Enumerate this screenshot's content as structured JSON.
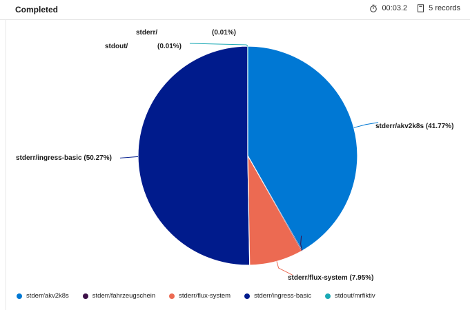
{
  "status": {
    "label": "Completed"
  },
  "meta": {
    "elapsed": "00:03.2",
    "records": "5 records",
    "elapsed_icon": "stopwatch-icon",
    "records_icon": "document-icon"
  },
  "chart_data": {
    "type": "pie",
    "title": "",
    "legend_position": "bottom-left",
    "slices": [
      {
        "name": "stderr/akv2k8s",
        "value": 41.77,
        "label": "stderr/akv2k8s (41.77%)",
        "color": "#0078d4"
      },
      {
        "name": "stderr/fahrzeugschein",
        "value": 0.01,
        "label_name": "stderr/",
        "label_pct": "(0.01%)",
        "color": "#3d1048"
      },
      {
        "name": "stderr/flux-system",
        "value": 7.95,
        "label": "stderr/flux-system (7.95%)",
        "color": "#ec6a52"
      },
      {
        "name": "stderr/ingress-basic",
        "value": 50.27,
        "label": "stderr/ingress-basic (50.27%)",
        "color": "#001b8c"
      },
      {
        "name": "stdout/mrfiktiv",
        "value": 0.01,
        "label_name": "stdout/",
        "label_pct": "(0.01%)",
        "color": "#1aa9b4"
      }
    ]
  }
}
